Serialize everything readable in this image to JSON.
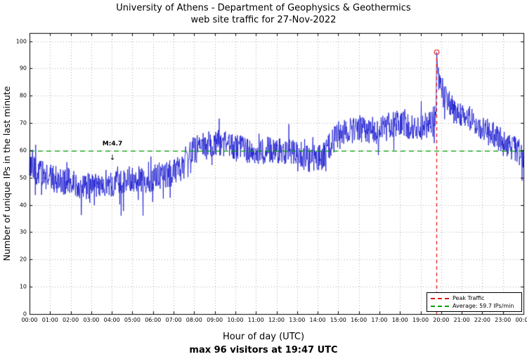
{
  "title_line1": "University of Athens - Department of Geophysics & Geothermics",
  "title_line2": "web site traffic for 27-Nov-2022",
  "ylabel": "Number of unique IPs in the last minute",
  "xlabel": "Hour of day (UTC)",
  "footer": "max 96 visitors at 19:47 UTC",
  "annotation": {
    "text": "M:4.7",
    "arrow": "↓",
    "hour": 4.03,
    "value_text": 61.0,
    "value_arrow": 57.2
  },
  "legend": {
    "items": [
      {
        "label": "Peak Traffic",
        "color": "#dd1111"
      },
      {
        "label": "Average: 59.7 IPs/min",
        "color": "#00a000"
      }
    ]
  },
  "chart_data": {
    "type": "line",
    "title": "University of Athens - Department of Geophysics & Geothermics",
    "subtitle": "web site traffic for 27-Nov-2022",
    "xlabel": "Hour of day (UTC)",
    "ylabel": "Number of unique IPs in the last minute",
    "x_ticks": [
      "00:00",
      "01:00",
      "02:00",
      "03:00",
      "04:00",
      "05:00",
      "06:00",
      "07:00",
      "08:00",
      "09:00",
      "10:00",
      "11:00",
      "12:00",
      "13:00",
      "14:00",
      "15:00",
      "16:00",
      "17:00",
      "18:00",
      "19:00",
      "20:00",
      "21:00",
      "22:00",
      "23:00",
      "00:00"
    ],
    "y_ticks": [
      0,
      10,
      20,
      30,
      40,
      50,
      60,
      70,
      80,
      90,
      100
    ],
    "xlim_hours": [
      0,
      24
    ],
    "ylim": [
      0,
      103
    ],
    "grid": true,
    "legend_position": "bottom-right",
    "average": 59.7,
    "peak": {
      "value": 96,
      "time_hour": 19.7833,
      "time_label": "19:47 UTC"
    },
    "series_color": "#1515cf",
    "average_color": "#00a000",
    "peak_color": "#dd1111",
    "grid_color": "#aaaaaa",
    "noise_amplitude": 5,
    "sampling_minutes": 1,
    "hourly_profile": [
      [
        0,
        55
      ],
      [
        0.3,
        52
      ],
      [
        1,
        50
      ],
      [
        1.5,
        49
      ],
      [
        2,
        48
      ],
      [
        2.5,
        47
      ],
      [
        3,
        47
      ],
      [
        3.5,
        48
      ],
      [
        4,
        48
      ],
      [
        4.5,
        49
      ],
      [
        5,
        50
      ],
      [
        5.5,
        49
      ],
      [
        6,
        50
      ],
      [
        6.5,
        51
      ],
      [
        7,
        52
      ],
      [
        7.4,
        54
      ],
      [
        7.7,
        59
      ],
      [
        8,
        60
      ],
      [
        8.5,
        62
      ],
      [
        9,
        63
      ],
      [
        9.5,
        62
      ],
      [
        10,
        61
      ],
      [
        10.5,
        60
      ],
      [
        11,
        59
      ],
      [
        11.5,
        60
      ],
      [
        12,
        60
      ],
      [
        12.5,
        59
      ],
      [
        13,
        59
      ],
      [
        13.5,
        57
      ],
      [
        14,
        57
      ],
      [
        14.3,
        58
      ],
      [
        14.7,
        63
      ],
      [
        15,
        65
      ],
      [
        15.5,
        67
      ],
      [
        16,
        68
      ],
      [
        16.5,
        67
      ],
      [
        17,
        67
      ],
      [
        17.5,
        69
      ],
      [
        18,
        70
      ],
      [
        18.5,
        69
      ],
      [
        19,
        68
      ],
      [
        19.5,
        70
      ],
      [
        19.75,
        73
      ],
      [
        19.7833,
        96
      ],
      [
        19.85,
        87
      ],
      [
        20,
        81
      ],
      [
        20.3,
        78
      ],
      [
        20.7,
        74
      ],
      [
        21,
        73
      ],
      [
        21.5,
        71
      ],
      [
        22,
        68
      ],
      [
        22.5,
        66
      ],
      [
        23,
        63
      ],
      [
        23.5,
        61
      ],
      [
        24,
        58
      ]
    ]
  }
}
